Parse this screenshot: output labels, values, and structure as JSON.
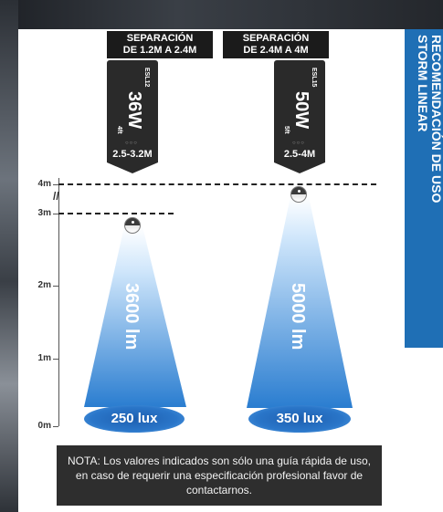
{
  "side_banner": {
    "line1": "RECOMENDACIÓN DE USO",
    "line2": "STORM LINEAR"
  },
  "fixtures": [
    {
      "separation_line1": "SEPARACIÓN",
      "separation_line2": "DE 1.2M A 2.4M",
      "model": "ESL12",
      "watts": "36W",
      "length": "4ft",
      "range": "2.5-3.2M",
      "lumens": "3600 lm",
      "lux": "250 lux",
      "mount_height_m": 2.85
    },
    {
      "separation_line1": "SEPARACIÓN",
      "separation_line2": "DE 2.4M A 4M",
      "model": "ESL15",
      "watts": "50W",
      "length": "5ft",
      "range": "2.5-4M",
      "lumens": "5000 lm",
      "lux": "350 lux",
      "mount_height_m": 3.85
    }
  ],
  "axis": {
    "ticks": [
      "0m",
      "1m",
      "2m",
      "3m",
      "4m"
    ]
  },
  "note": "NOTA: Los valores indicados son sólo una guía rápida de uso, en caso de requerir una especificación profesional favor de contactarnos.",
  "colors": {
    "banner_blue": "#1f6fb5",
    "beam_top": "#ffffff",
    "beam_bottom": "#2a7dd0",
    "card_dark": "#2a2a2a"
  }
}
